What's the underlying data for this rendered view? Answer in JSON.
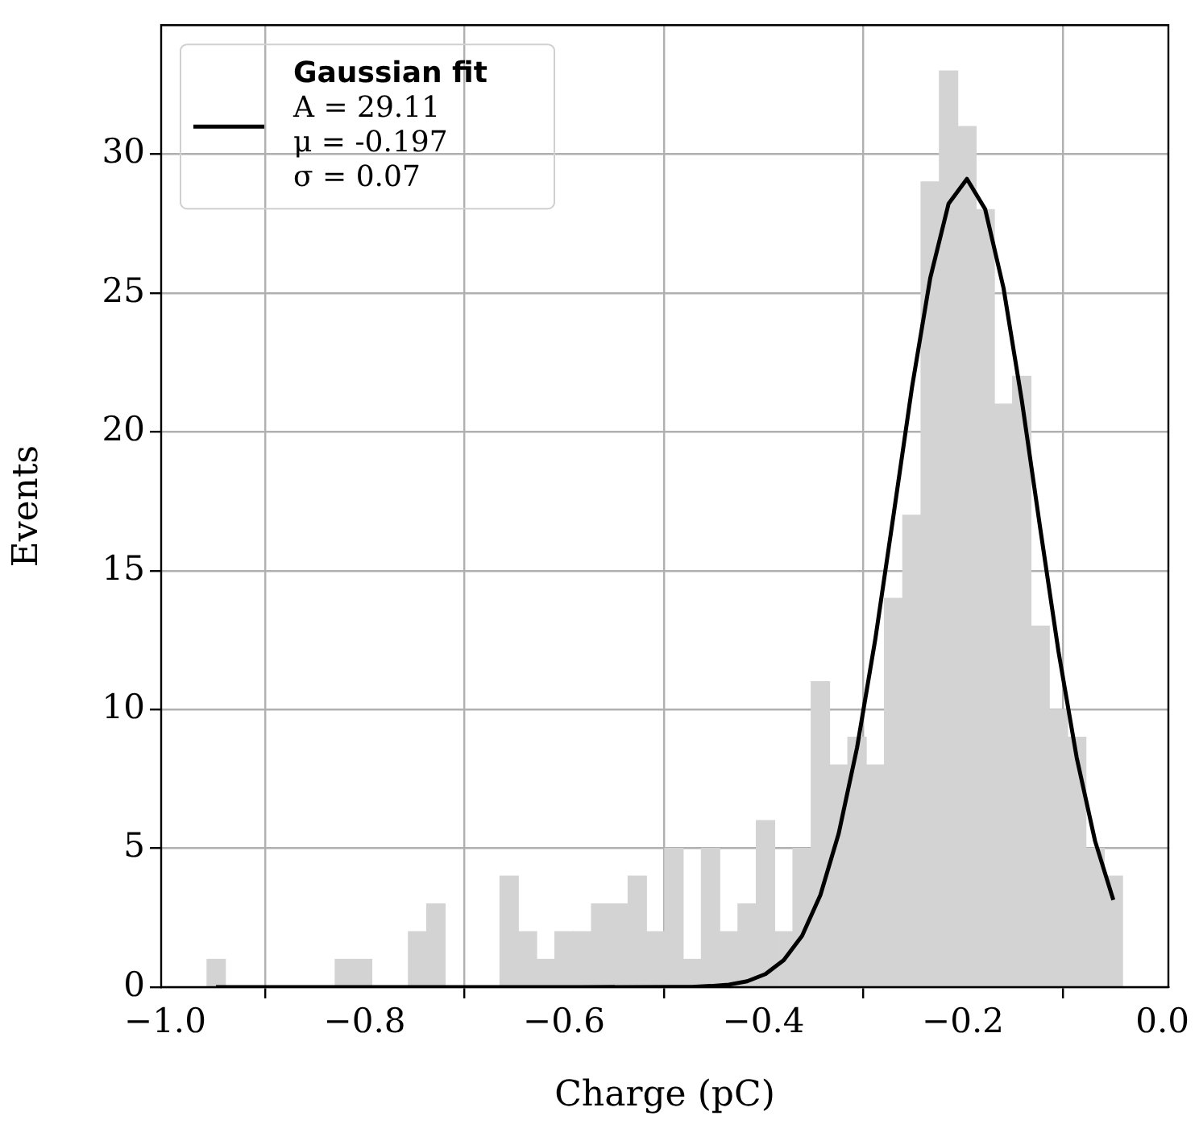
{
  "chart_data": {
    "type": "histogram",
    "xlabel": "Charge (pC)",
    "ylabel": "Events",
    "xlim": [
      -1.004,
      0.006
    ],
    "ylim": [
      0,
      34.65
    ],
    "xticks": [
      {
        "value": -1,
        "label": "−1.0"
      },
      {
        "value": -0.8,
        "label": "−0.8"
      },
      {
        "value": -0.6,
        "label": "−0.6"
      },
      {
        "value": -0.4,
        "label": "−0.4"
      },
      {
        "value": -0.2,
        "label": "−0.2"
      },
      {
        "value": 0,
        "label": "0.0"
      }
    ],
    "yticks": [
      0,
      5,
      10,
      15,
      20,
      25,
      30
    ],
    "grid": true,
    "legend": "top left",
    "annotations": [
      "A = 29.11",
      "μ = -0.197",
      "σ = 0.07"
    ],
    "series": [
      {
        "color": "#d3d3d3",
        "bins": [
          -0.958,
          -0.9396,
          -0.9213,
          -0.9029,
          -0.8846,
          -0.8662,
          -0.8478,
          -0.8295,
          -0.8111,
          -0.7928,
          -0.7744,
          -0.756,
          -0.7377,
          -0.7193,
          -0.701,
          -0.6826,
          -0.6642,
          -0.6459,
          -0.6275,
          -0.6092,
          -0.5908,
          -0.5724,
          -0.5541,
          -0.5357,
          -0.5174,
          -0.499,
          -0.4806,
          -0.4623,
          -0.4439,
          -0.4256,
          -0.4072,
          -0.3888,
          -0.3705,
          -0.3521,
          -0.3338,
          -0.3154,
          -0.297,
          -0.2787,
          -0.2603,
          -0.242,
          -0.2236,
          -0.2052,
          -0.1869,
          -0.1685,
          -0.1502,
          -0.1318,
          -0.1134,
          -0.0951,
          -0.0767,
          -0.0584,
          -0.04
        ],
        "values": [
          1,
          0,
          0,
          0,
          0,
          0,
          0,
          1,
          1,
          0,
          0,
          2,
          3,
          0,
          0,
          0,
          4,
          2,
          1,
          2,
          2,
          3,
          3,
          4,
          2,
          5,
          1,
          5,
          2,
          3,
          6,
          2,
          5,
          11,
          8,
          9,
          8,
          14,
          17,
          29,
          33,
          31,
          28,
          21,
          22,
          13,
          10,
          9,
          5,
          4
        ]
      },
      {
        "type": "line",
        "name": "Gaussian fit",
        "color": "#000000",
        "x": [
          -0.949,
          -0.765,
          -0.582,
          -0.49,
          -0.4715,
          -0.4531,
          -0.4347,
          -0.4164,
          -0.398,
          -0.3797,
          -0.3613,
          -0.3429,
          -0.3246,
          -0.3062,
          -0.2878,
          -0.2695,
          -0.2511,
          -0.2328,
          -0.2144,
          -0.196,
          -0.1777,
          -0.1593,
          -0.141,
          -0.1226,
          -0.1042,
          -0.0859,
          -0.0675,
          -0.0492
        ],
        "values": [
          0,
          0,
          0,
          0.01,
          0.01,
          0.04,
          0.09,
          0.21,
          0.47,
          0.97,
          1.85,
          3.32,
          5.53,
          8.62,
          12.55,
          17.03,
          21.6,
          25.54,
          28.22,
          29.11,
          28.02,
          25.18,
          21.14,
          16.55,
          12.09,
          8.26,
          5.26,
          3.14
        ]
      }
    ]
  }
}
